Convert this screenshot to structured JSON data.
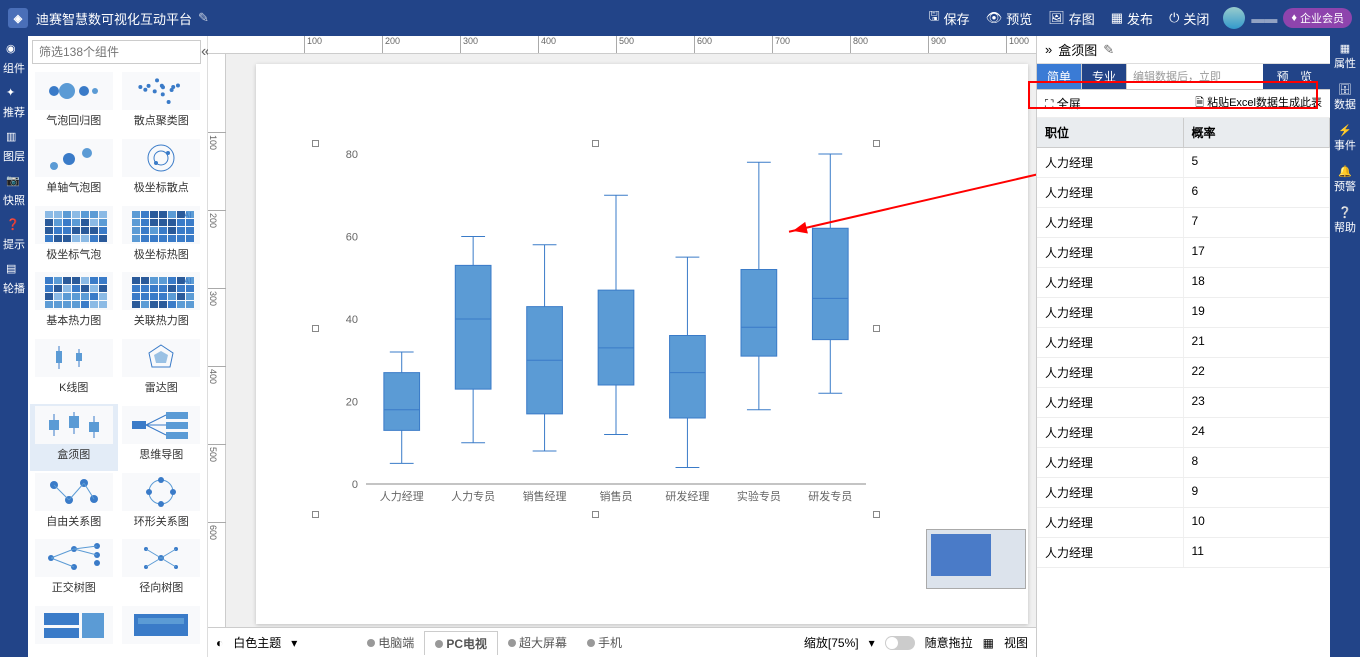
{
  "app": {
    "title": "迪赛智慧数可视化互动平台"
  },
  "topbar": {
    "buttons": [
      {
        "icon": "save",
        "label": "保存"
      },
      {
        "icon": "preview",
        "label": "预览"
      },
      {
        "icon": "image",
        "label": "存图"
      },
      {
        "icon": "publish",
        "label": "发布"
      },
      {
        "icon": "close",
        "label": "关闭"
      }
    ],
    "vip": "企业会员"
  },
  "leftrail": [
    {
      "label": "组件"
    },
    {
      "label": "推荐"
    },
    {
      "label": "图层"
    },
    {
      "label": "快照"
    },
    {
      "label": "提示"
    },
    {
      "label": "轮播"
    }
  ],
  "rightrail": [
    {
      "label": "属性"
    },
    {
      "label": "数据"
    },
    {
      "label": "事件"
    },
    {
      "label": "预警"
    },
    {
      "label": "帮助"
    }
  ],
  "search_placeholder": "筛选138个组件",
  "components": [
    {
      "label": "气泡回归图",
      "t": "dots"
    },
    {
      "label": "散点聚类图",
      "t": "scatter"
    },
    {
      "label": "单轴气泡图",
      "t": "bubble"
    },
    {
      "label": "极坐标散点",
      "t": "polar"
    },
    {
      "label": "极坐标气泡",
      "t": "heat"
    },
    {
      "label": "极坐标热图",
      "t": "heat2"
    },
    {
      "label": "基本热力图",
      "t": "heat"
    },
    {
      "label": "关联热力图",
      "t": "heat2"
    },
    {
      "label": "K线图",
      "t": "candle"
    },
    {
      "label": "雷达图",
      "t": "radar"
    },
    {
      "label": "盒须图",
      "t": "box",
      "sel": true
    },
    {
      "label": "思维导图",
      "t": "mind"
    },
    {
      "label": "自由关系图",
      "t": "net"
    },
    {
      "label": "环形关系图",
      "t": "ring"
    },
    {
      "label": "正交树图",
      "t": "tree"
    },
    {
      "label": "径向树图",
      "t": "rtree"
    },
    {
      "label": "",
      "t": "blank"
    },
    {
      "label": "",
      "t": "blank2"
    }
  ],
  "chart": {
    "type": "boxplot",
    "ylim": [
      0,
      80
    ],
    "ytick_step": 20,
    "categories": [
      "人力经理",
      "人力专员",
      "销售经理",
      "销售员",
      "研发经理",
      "实验专员",
      "研发专员"
    ],
    "boxes": [
      {
        "min": 5,
        "q1": 13,
        "med": 18,
        "q3": 27,
        "max": 32
      },
      {
        "min": 10,
        "q1": 23,
        "med": 40,
        "q3": 53,
        "max": 60
      },
      {
        "min": 8,
        "q1": 17,
        "med": 30,
        "q3": 43,
        "max": 58
      },
      {
        "min": 12,
        "q1": 24,
        "med": 33,
        "q3": 47,
        "max": 70
      },
      {
        "min": 4,
        "q1": 16,
        "med": 27,
        "q3": 36,
        "max": 55
      },
      {
        "min": 18,
        "q1": 31,
        "med": 38,
        "q3": 52,
        "max": 78
      },
      {
        "min": 22,
        "q1": 35,
        "med": 45,
        "q3": 62,
        "max": 80
      }
    ],
    "box_color": "#5b9bd5",
    "box_border": "#3a7bc8",
    "whisker_color": "#3a7bc8",
    "axis_color": "#888888",
    "text_color": "#666666",
    "label_fontsize": 11,
    "tick_fontsize": 11
  },
  "bottombar": {
    "theme": "白色主题",
    "devices": [
      "电脑端",
      "PC电视",
      "超大屏幕",
      "手机"
    ],
    "active_device": 1,
    "zoom": "缩放[75%]",
    "drag": "随意拖拉",
    "view": "视图"
  },
  "rightpanel": {
    "title": "盒须图",
    "tabs": {
      "simple": "简单",
      "pro": "专业"
    },
    "hint": "编辑数据后，立即",
    "preview": "预 览",
    "fullscreen": "全屏",
    "paste": "粘贴Excel数据生成此表",
    "columns": [
      "职位",
      "概率"
    ],
    "rows": [
      [
        "人力经理",
        "5"
      ],
      [
        "人力经理",
        "6"
      ],
      [
        "人力经理",
        "7"
      ],
      [
        "人力经理",
        "17"
      ],
      [
        "人力经理",
        "18"
      ],
      [
        "人力经理",
        "19"
      ],
      [
        "人力经理",
        "21"
      ],
      [
        "人力经理",
        "22"
      ],
      [
        "人力经理",
        "23"
      ],
      [
        "人力经理",
        "24"
      ],
      [
        "人力经理",
        "8"
      ],
      [
        "人力经理",
        "9"
      ],
      [
        "人力经理",
        "10"
      ],
      [
        "人力经理",
        "11"
      ]
    ]
  }
}
